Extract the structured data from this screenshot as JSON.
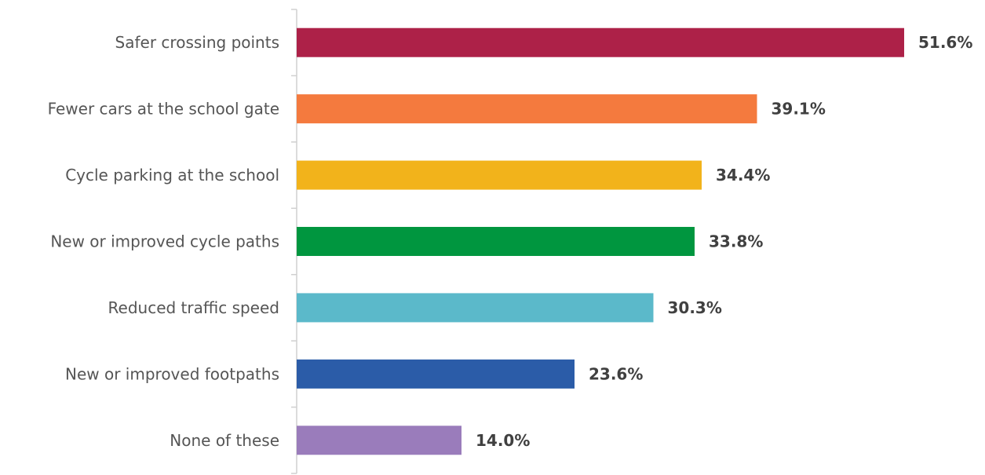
{
  "chart_data": {
    "type": "bar",
    "orientation": "horizontal",
    "categories": [
      "Safer crossing points",
      "Fewer cars at the school gate",
      "Cycle parking at the school",
      "New or improved cycle paths",
      "Reduced traffic speed",
      "New or improved footpaths",
      "None of these"
    ],
    "values": [
      51.6,
      39.1,
      34.4,
      33.8,
      30.3,
      23.6,
      14.0
    ],
    "value_labels": [
      "51.6%",
      "39.1%",
      "34.4%",
      "33.8%",
      "30.3%",
      "23.6%",
      "14.0%"
    ],
    "colors": [
      "#AD2148",
      "#F47A3E",
      "#F2B31B",
      "#00963F",
      "#5BB9CA",
      "#2B5CA8",
      "#9A7CBB"
    ],
    "xlim": [
      0,
      55
    ],
    "grid": false,
    "legend": "none"
  }
}
